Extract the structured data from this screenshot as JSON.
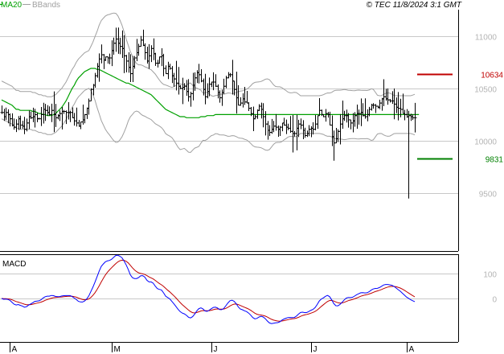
{
  "header": {
    "legend_items": [
      {
        "label": "MA20",
        "color": "#00a000"
      },
      {
        "label": "BBands",
        "color": "#a0a0a0"
      }
    ],
    "copyright": "© TEC 11/8/2024 3:1 GMT"
  },
  "colors": {
    "bars": "#000000",
    "ma20": "#00a000",
    "bbands": "#a0a0a0",
    "resistance": "#c00000",
    "support": "#008000",
    "macd": "#0000ff",
    "signal": "#c00000",
    "gridline": "#c8c8c8",
    "panel_border": "#000000"
  },
  "chart_data": [
    {
      "type": "ohlc",
      "title": "",
      "y_ticks": [
        11000,
        10500,
        10000,
        9500
      ],
      "y_tick_labels": [
        "11000",
        "10500",
        "10000",
        "9500"
      ],
      "ylim": [
        8950,
        11250
      ],
      "x_ticks": [
        "A",
        "M",
        "J",
        "J",
        "A"
      ],
      "x_tick_index": [
        4,
        53,
        101,
        149,
        195
      ],
      "levels": [
        {
          "name": "resistance",
          "value": 10634,
          "label": "10634"
        },
        {
          "name": "support",
          "value": 9831,
          "label": "9831"
        }
      ],
      "series": {
        "close": [
          10270,
          10230,
          10270,
          10250,
          10210,
          10150,
          10130,
          10160,
          10210,
          10150,
          10140,
          10110,
          10170,
          10230,
          10220,
          10230,
          10250,
          10210,
          10210,
          10250,
          10300,
          10290,
          10270,
          10250,
          10290,
          10250,
          10220,
          10240,
          10260,
          10280,
          10280,
          10270,
          10270,
          10270,
          10220,
          10190,
          10170,
          10140,
          10180,
          10200,
          10250,
          10310,
          10380,
          10490,
          10530,
          10620,
          10710,
          10780,
          10820,
          10770,
          10800,
          10790,
          10790,
          10860,
          10930,
          10970,
          10930,
          10900,
          10880,
          10810,
          10760,
          10700,
          10640,
          10710,
          10790,
          10840,
          10900,
          10960,
          10910,
          10840,
          10760,
          10810,
          10880,
          10830,
          10740,
          10740,
          10800,
          10810,
          10690,
          10640,
          10710,
          10690,
          10620,
          10590,
          10550,
          10520,
          10500,
          10510,
          10520,
          10470,
          10420,
          10450,
          10530,
          10600,
          10650,
          10630,
          10570,
          10490,
          10420,
          10470,
          10540,
          10560,
          10560,
          10520,
          10460,
          10410,
          10460,
          10520,
          10600,
          10630,
          10630,
          10570,
          10490,
          10410,
          10340,
          10360,
          10400,
          10370,
          10360,
          10310,
          10260,
          10210,
          10230,
          10290,
          10330,
          10300,
          10230,
          10160,
          10100,
          10080,
          10110,
          10140,
          10130,
          10110,
          10130,
          10170,
          10150,
          10130,
          10120,
          10090,
          10070,
          10070,
          10120,
          10160,
          10150,
          10100,
          10050,
          10070,
          10110,
          10120,
          10110,
          10160,
          10240,
          10290,
          10250,
          10230,
          10260,
          10250,
          10150,
          10040,
          9980,
          10020,
          10090,
          10160,
          10210,
          10240,
          10240,
          10200,
          10170,
          10190,
          10240,
          10260,
          10260,
          10270,
          10240,
          10230,
          10250,
          10300,
          10340,
          10340,
          10330,
          10320,
          10360,
          10400,
          10420,
          10400,
          10390,
          10380,
          10380,
          10350,
          10320,
          10310,
          10300,
          10260,
          10250,
          10230,
          10240,
          10230,
          10220,
          10220
        ],
        "ma20": [
          10390,
          10380,
          10370,
          10360,
          10350,
          10340,
          10320,
          10300,
          10300,
          10290,
          10290,
          10290,
          10290,
          10290,
          10290,
          10280,
          10280,
          10270,
          10260,
          10260,
          10250,
          10250,
          10240,
          10240,
          10240,
          10250,
          10260,
          10280,
          10300,
          10320,
          10350,
          10380,
          10420,
          10460,
          10500,
          10530,
          10570,
          10600,
          10620,
          10640,
          10660,
          10670,
          10680,
          10690,
          10690,
          10690,
          10680,
          10680,
          10670,
          10660,
          10650,
          10640,
          10630,
          10620,
          10610,
          10600,
          10590,
          10580,
          10570,
          10560,
          10550,
          10550,
          10540,
          10530,
          10520,
          10510,
          10500,
          10490,
          10480,
          10470,
          10460,
          10450,
          10440,
          10420,
          10400,
          10380,
          10360,
          10340,
          10320,
          10300,
          10290,
          10280,
          10270,
          10260,
          10250,
          10240,
          10230,
          10230,
          10230,
          10220,
          10220,
          10220,
          10220,
          10220,
          10220,
          10220,
          10230,
          10230,
          10230,
          10240,
          10240,
          10240,
          10240,
          10250,
          10250,
          10250,
          10250,
          10250,
          10250,
          10250,
          10250,
          10250,
          10250,
          10250,
          10250,
          10250,
          10250,
          10250,
          10250,
          10250,
          10250,
          10250,
          10250,
          10250,
          10250,
          10250,
          10250,
          10250,
          10250,
          10250,
          10250,
          10250,
          10250,
          10250,
          10250,
          10250,
          10250,
          10250,
          10250,
          10250,
          10250,
          10250,
          10250,
          10250,
          10250,
          10250,
          10250,
          10250,
          10250,
          10250,
          10250,
          10250,
          10250,
          10250,
          10250,
          10250,
          10250,
          10250,
          10250,
          10250,
          10250,
          10250,
          10250,
          10250,
          10250,
          10250,
          10250,
          10250,
          10250,
          10250,
          10250,
          10250,
          10250,
          10250,
          10250,
          10250,
          10250,
          10250,
          10250,
          10250,
          10250,
          10250,
          10250,
          10250,
          10250,
          10250,
          10250,
          10250,
          10250,
          10250,
          10250,
          10250,
          10250,
          10250,
          10250,
          10250,
          10250,
          10250,
          10250,
          10250,
          10250,
          10250
        ],
        "bb_upper": [],
        "bb_lower": []
      }
    },
    {
      "type": "line",
      "title": "MACD",
      "y_ticks": [
        100,
        0
      ],
      "y_tick_labels": [
        "100",
        "0"
      ],
      "ylim": [
        -170,
        170
      ],
      "series": [
        {
          "name": "MACD",
          "values": []
        },
        {
          "name": "Signal",
          "values": []
        }
      ]
    }
  ]
}
